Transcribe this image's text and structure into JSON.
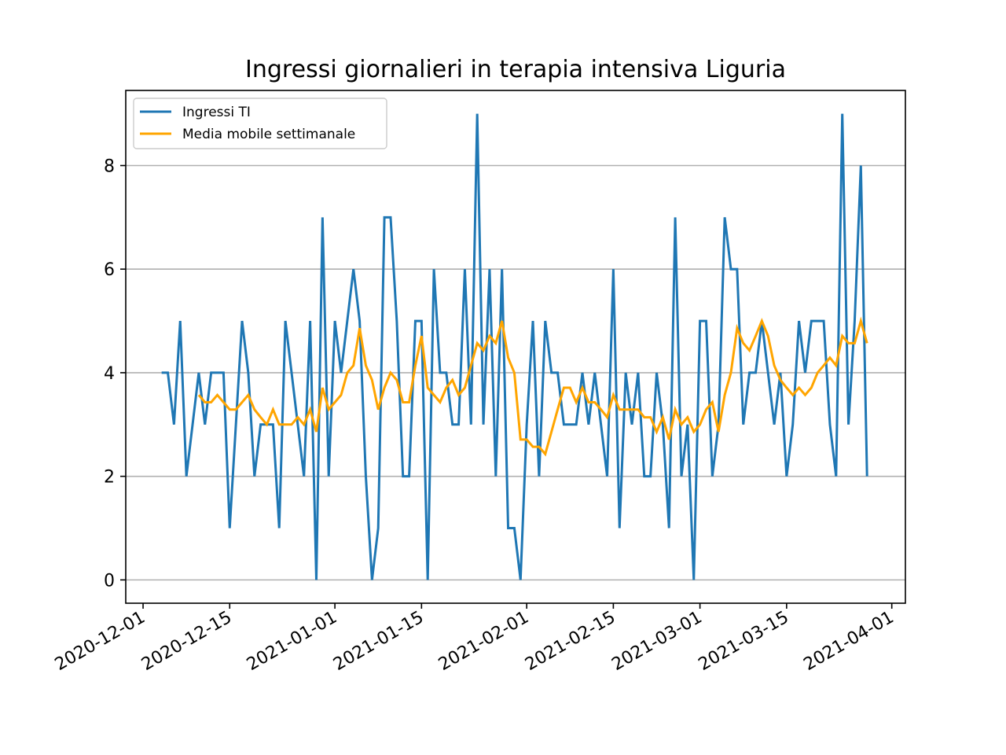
{
  "chart_data": {
    "type": "line",
    "title": "Ingressi giornalieri in terapia intensiva Liguria",
    "xlabel": "",
    "ylabel": "",
    "start_date": "2020-12-04",
    "ylim": [
      -0.45,
      9.45
    ],
    "yticks": [
      0,
      2,
      4,
      6,
      8
    ],
    "grid": "horizontal",
    "legend_position": "top-left",
    "x_ticks": [
      {
        "label": "2020-12-01",
        "day": -3
      },
      {
        "label": "2020-12-15",
        "day": 11
      },
      {
        "label": "2021-01-01",
        "day": 28
      },
      {
        "label": "2021-01-15",
        "day": 42
      },
      {
        "label": "2021-02-01",
        "day": 59
      },
      {
        "label": "2021-02-15",
        "day": 73
      },
      {
        "label": "2021-03-01",
        "day": 87
      },
      {
        "label": "2021-03-15",
        "day": 101
      },
      {
        "label": "2021-04-01",
        "day": 118
      }
    ],
    "x_range_days": [
      -5.8,
      120.2
    ],
    "series": [
      {
        "name": "Ingressi TI",
        "color": "#1f77b4",
        "start_day": 0,
        "values": [
          4,
          4,
          3,
          5,
          2,
          3,
          4,
          3,
          4,
          4,
          4,
          1,
          3,
          5,
          4,
          2,
          3,
          3,
          3,
          1,
          5,
          4,
          3,
          2,
          5,
          0,
          7,
          2,
          5,
          4,
          5,
          6,
          5,
          2,
          0,
          1,
          7,
          7,
          5,
          2,
          2,
          5,
          5,
          0,
          6,
          4,
          4,
          3,
          3,
          6,
          3,
          9,
          3,
          6,
          2,
          6,
          1,
          1,
          0,
          3,
          5,
          2,
          5,
          4,
          4,
          3,
          3,
          3,
          4,
          3,
          4,
          3,
          2,
          6,
          1,
          4,
          3,
          4,
          2,
          2,
          4,
          3,
          1,
          7,
          2,
          3,
          0,
          5,
          5,
          2,
          3,
          7,
          6,
          6,
          3,
          4,
          4,
          5,
          4,
          3,
          4,
          2,
          3,
          5,
          4,
          5,
          5,
          5,
          3,
          2,
          9,
          3,
          5,
          8,
          2
        ]
      },
      {
        "name": "Media mobile settimanale",
        "color": "#ffa500",
        "start_day": 6,
        "values": [
          3.57,
          3.43,
          3.43,
          3.57,
          3.43,
          3.29,
          3.29,
          3.43,
          3.57,
          3.29,
          3.14,
          3.0,
          3.29,
          3.0,
          3.0,
          3.0,
          3.14,
          3.0,
          3.29,
          2.86,
          3.71,
          3.29,
          3.43,
          3.57,
          4.0,
          4.14,
          4.86,
          4.14,
          3.86,
          3.29,
          3.71,
          4.0,
          3.86,
          3.43,
          3.43,
          4.14,
          4.71,
          3.71,
          3.57,
          3.43,
          3.71,
          3.86,
          3.57,
          3.71,
          4.14,
          4.57,
          4.43,
          4.71,
          4.57,
          5.0,
          4.29,
          4.0,
          2.71,
          2.71,
          2.57,
          2.57,
          2.43,
          2.86,
          3.29,
          3.71,
          3.71,
          3.43,
          3.71,
          3.43,
          3.43,
          3.29,
          3.14,
          3.57,
          3.29,
          3.29,
          3.29,
          3.29,
          3.14,
          3.14,
          2.86,
          3.14,
          2.71,
          3.29,
          3.0,
          3.14,
          2.86,
          3.0,
          3.29,
          3.43,
          2.86,
          3.57,
          4.0,
          4.86,
          4.57,
          4.43,
          4.71,
          5.0,
          4.71,
          4.14,
          3.86,
          3.71,
          3.57,
          3.71,
          3.57,
          3.71,
          4.0,
          4.14,
          4.29,
          4.14,
          4.71,
          4.57,
          4.57,
          5.0,
          4.57
        ]
      }
    ]
  }
}
